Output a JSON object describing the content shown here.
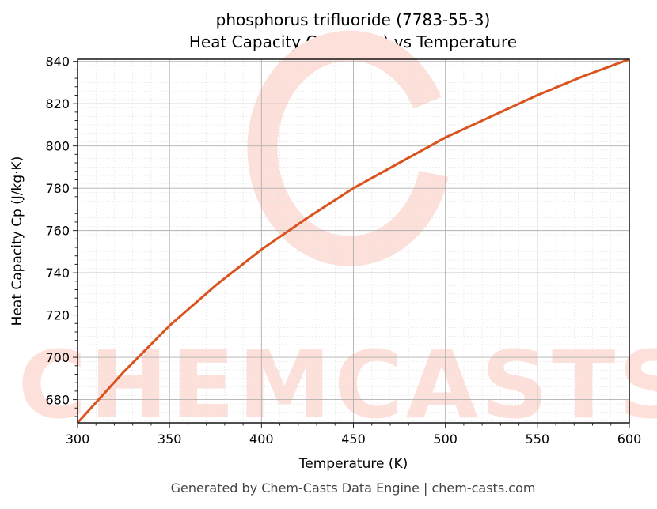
{
  "title_line1": "phosphorus trifluoride (7783-55-3)",
  "title_line2": "Heat Capacity Cp (J/kg·K) vs Temperature",
  "xlabel": "Temperature (K)",
  "ylabel": "Heat Capacity Cp (J/kg·K)",
  "footer": "Generated by Chem-Casts Data Engine | chem-casts.com",
  "watermark": "CHEMCASTS",
  "line_color": "#d9531e",
  "chart_data": {
    "type": "line",
    "title": "phosphorus trifluoride (7783-55-3) Heat Capacity Cp (J/kg·K) vs Temperature",
    "xlabel": "Temperature (K)",
    "ylabel": "Heat Capacity Cp (J/kg·K)",
    "xlim": [
      300,
      600
    ],
    "ylim": [
      669,
      841
    ],
    "xticks": [
      300,
      350,
      400,
      450,
      500,
      550,
      600
    ],
    "yticks": [
      680,
      700,
      720,
      740,
      760,
      780,
      800,
      820,
      840
    ],
    "grid": true,
    "legend": null,
    "series": [
      {
        "name": "Cp",
        "x": [
          300,
          325,
          350,
          375,
          400,
          425,
          450,
          475,
          500,
          525,
          550,
          575,
          600
        ],
        "values": [
          669,
          693,
          715,
          734,
          751,
          766,
          780,
          792,
          804,
          814,
          824,
          833,
          841
        ]
      }
    ]
  }
}
